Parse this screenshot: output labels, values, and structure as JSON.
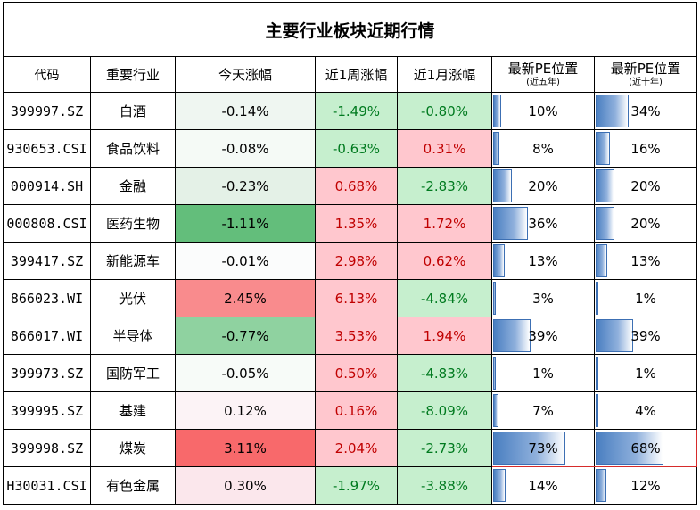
{
  "title": "主要行业板块近期行情",
  "headers": {
    "code": "代码",
    "industry": "重要行业",
    "today": "今天涨幅",
    "week": "近1周涨幅",
    "month": "近1月涨幅",
    "pe5_line1": "最新PE位置",
    "pe5_line2": "(近五年)",
    "pe10_line1": "最新PE位置",
    "pe10_line2": "(近十年)"
  },
  "colors": {
    "up_text": "#c00000",
    "down_text": "#007a1f",
    "bar_blue": "#4a7fc1",
    "highlight_border": "#d62b2b"
  },
  "rows": [
    {
      "code": "399997.SZ",
      "industry": "白酒",
      "today": "-0.14%",
      "week": "-1.49%",
      "month": "-0.80%",
      "pe5": "10%",
      "pe10": "34%",
      "pe5_frac": 0.1,
      "pe10_frac": 0.34,
      "today_bg": "#eff6f1",
      "week_bg": "#c6efce",
      "month_bg": "#c6efce"
    },
    {
      "code": "930653.CSI",
      "industry": "食品饮料",
      "today": "-0.08%",
      "week": "-0.63%",
      "month": "0.31%",
      "pe5": "8%",
      "pe10": "16%",
      "pe5_frac": 0.08,
      "pe10_frac": 0.16,
      "today_bg": "#f5faf6",
      "week_bg": "#c6efce",
      "month_bg": "#ffc7ce"
    },
    {
      "code": "000914.SH",
      "industry": "金融",
      "today": "-0.23%",
      "week": "0.68%",
      "month": "-2.83%",
      "pe5": "20%",
      "pe10": "20%",
      "pe5_frac": 0.2,
      "pe10_frac": 0.2,
      "today_bg": "#e4f1e7",
      "week_bg": "#ffc7ce",
      "month_bg": "#c6efce"
    },
    {
      "code": "000808.CSI",
      "industry": "医药生物",
      "today": "-1.11%",
      "week": "1.35%",
      "month": "1.72%",
      "pe5": "36%",
      "pe10": "20%",
      "pe5_frac": 0.36,
      "pe10_frac": 0.2,
      "today_bg": "#63be7b",
      "week_bg": "#ffc7ce",
      "month_bg": "#ffc7ce"
    },
    {
      "code": "399417.SZ",
      "industry": "新能源车",
      "today": "-0.01%",
      "week": "2.98%",
      "month": "0.62%",
      "pe5": "13%",
      "pe10": "13%",
      "pe5_frac": 0.13,
      "pe10_frac": 0.13,
      "today_bg": "#fbfcfc",
      "week_bg": "#ffc7ce",
      "month_bg": "#ffc7ce"
    },
    {
      "code": "866023.WI",
      "industry": "光伏",
      "today": "2.45%",
      "week": "6.13%",
      "month": "-4.84%",
      "pe5": "3%",
      "pe10": "1%",
      "pe5_frac": 0.03,
      "pe10_frac": 0.01,
      "today_bg": "#f98b8d",
      "week_bg": "#ffc7ce",
      "month_bg": "#c6efce"
    },
    {
      "code": "866017.WI",
      "industry": "半导体",
      "today": "-0.77%",
      "week": "3.53%",
      "month": "1.94%",
      "pe5": "39%",
      "pe10": "39%",
      "pe5_frac": 0.39,
      "pe10_frac": 0.39,
      "today_bg": "#8fd2a0",
      "week_bg": "#ffc7ce",
      "month_bg": "#ffc7ce"
    },
    {
      "code": "399973.SZ",
      "industry": "国防军工",
      "today": "-0.05%",
      "week": "0.50%",
      "month": "-4.83%",
      "pe5": "1%",
      "pe10": "1%",
      "pe5_frac": 0.01,
      "pe10_frac": 0.01,
      "today_bg": "#f7fbf8",
      "week_bg": "#ffc7ce",
      "month_bg": "#c6efce"
    },
    {
      "code": "399995.SZ",
      "industry": "基建",
      "today": "0.12%",
      "week": "0.16%",
      "month": "-8.09%",
      "pe5": "7%",
      "pe10": "4%",
      "pe5_frac": 0.07,
      "pe10_frac": 0.04,
      "today_bg": "#fcf3f6",
      "week_bg": "#ffc7ce",
      "month_bg": "#c6efce"
    },
    {
      "code": "399998.SZ",
      "industry": "煤炭",
      "today": "3.11%",
      "week": "2.04%",
      "month": "-2.73%",
      "pe5": "73%",
      "pe10": "68%",
      "pe5_frac": 0.73,
      "pe10_frac": 0.68,
      "today_bg": "#f8696b",
      "week_bg": "#ffc7ce",
      "month_bg": "#c6efce"
    },
    {
      "code": "H30031.CSI",
      "industry": "有色金属",
      "today": "0.30%",
      "week": "-1.97%",
      "month": "-3.88%",
      "pe5": "14%",
      "pe10": "12%",
      "pe5_frac": 0.14,
      "pe10_frac": 0.12,
      "today_bg": "#fbe7ec",
      "week_bg": "#c6efce",
      "month_bg": "#c6efce"
    }
  ]
}
